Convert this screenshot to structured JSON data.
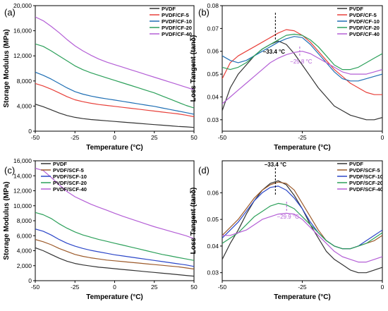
{
  "chart_data": [
    {
      "panel": "(a)",
      "type": "line",
      "xlabel": "Temperature (°C)",
      "ylabel": "Storage Modulus (MPa)",
      "xlim": [
        -50,
        50
      ],
      "ylim": [
        0,
        20000
      ],
      "xticks": [
        -50,
        -25,
        0,
        25,
        50
      ],
      "yticks": [
        0,
        4000,
        8000,
        12000,
        16000,
        20000
      ],
      "ytick_labels": [
        "0",
        "4,000",
        "8,000",
        "12,000",
        "16,000",
        "20,000"
      ],
      "legend_position": "top-right",
      "x": [
        -50,
        -45,
        -40,
        -35,
        -30,
        -25,
        -20,
        -15,
        -10,
        -5,
        0,
        5,
        10,
        15,
        20,
        25,
        30,
        35,
        40,
        45,
        50
      ],
      "series": [
        {
          "name": "PVDF",
          "color": "#333333",
          "values": [
            4300,
            3900,
            3400,
            2900,
            2500,
            2200,
            2000,
            1850,
            1750,
            1650,
            1550,
            1450,
            1350,
            1250,
            1150,
            1050,
            950,
            850,
            750,
            680,
            600
          ]
        },
        {
          "name": "PVDF/CF-5",
          "color": "#e8403a",
          "values": [
            7600,
            7200,
            6700,
            6100,
            5500,
            5000,
            4700,
            4450,
            4250,
            4100,
            3950,
            3800,
            3650,
            3500,
            3350,
            3200,
            3050,
            2900,
            2750,
            2550,
            2300
          ]
        },
        {
          "name": "PVDF/CF-10",
          "color": "#1f6fb4",
          "values": [
            9400,
            8900,
            8300,
            7600,
            6900,
            6300,
            5900,
            5600,
            5350,
            5150,
            4950,
            4750,
            4550,
            4350,
            4150,
            3950,
            3700,
            3450,
            3200,
            2950,
            2700
          ]
        },
        {
          "name": "PVDF/CF-20",
          "color": "#2ca05a",
          "values": [
            13900,
            13500,
            12800,
            12000,
            11200,
            10400,
            9800,
            9300,
            8900,
            8500,
            8100,
            7700,
            7300,
            6900,
            6500,
            6100,
            5600,
            5100,
            4600,
            4100,
            3700
          ]
        },
        {
          "name": "PVDF/CF-40",
          "color": "#b45fd6",
          "values": [
            18200,
            17600,
            16700,
            15700,
            14600,
            13600,
            12800,
            12100,
            11500,
            11000,
            10600,
            10200,
            9800,
            9400,
            9000,
            8600,
            8200,
            7800,
            7400,
            7000,
            6600
          ]
        }
      ]
    },
    {
      "panel": "(b)",
      "type": "line",
      "xlabel": "Temperature (°C)",
      "ylabel": "Loss Tangent (tanδ)",
      "xlim": [
        -50,
        0
      ],
      "ylim": [
        0.025,
        0.08
      ],
      "xticks": [
        -50,
        -25,
        0
      ],
      "yticks": [
        0.03,
        0.04,
        0.05,
        0.06,
        0.07,
        0.08
      ],
      "ytick_labels": [
        "0.03",
        "0.04",
        "0.05",
        "0.06",
        "0.07",
        "0.08"
      ],
      "legend_position": "top-right",
      "x": [
        -50,
        -47.5,
        -45,
        -42.5,
        -40,
        -37.5,
        -35,
        -32.5,
        -30,
        -27.5,
        -25,
        -22.5,
        -20,
        -17.5,
        -15,
        -12.5,
        -10,
        -7.5,
        -5,
        -2.5,
        0
      ],
      "series": [
        {
          "name": "PVDF",
          "color": "#333333",
          "values": [
            0.034,
            0.044,
            0.05,
            0.054,
            0.058,
            0.061,
            0.063,
            0.0645,
            0.063,
            0.059,
            0.054,
            0.049,
            0.044,
            0.04,
            0.036,
            0.034,
            0.032,
            0.031,
            0.03,
            0.03,
            0.031
          ]
        },
        {
          "name": "PVDF/CF-5",
          "color": "#e8403a",
          "values": [
            0.048,
            0.055,
            0.058,
            0.06,
            0.062,
            0.064,
            0.066,
            0.068,
            0.0695,
            0.069,
            0.067,
            0.064,
            0.06,
            0.056,
            0.052,
            0.049,
            0.046,
            0.044,
            0.042,
            0.041,
            0.041
          ]
        },
        {
          "name": "PVDF/CF-10",
          "color": "#1f6fb4",
          "values": [
            0.058,
            0.056,
            0.055,
            0.056,
            0.058,
            0.06,
            0.062,
            0.064,
            0.0655,
            0.0665,
            0.066,
            0.063,
            0.059,
            0.055,
            0.051,
            0.048,
            0.047,
            0.047,
            0.048,
            0.049,
            0.05
          ]
        },
        {
          "name": "PVDF/CF-20",
          "color": "#2ca05a",
          "values": [
            0.053,
            0.052,
            0.053,
            0.055,
            0.058,
            0.061,
            0.063,
            0.065,
            0.067,
            0.0675,
            0.067,
            0.065,
            0.062,
            0.058,
            0.054,
            0.052,
            0.052,
            0.053,
            0.055,
            0.057,
            0.059
          ]
        },
        {
          "name": "PVDF/CF-40",
          "color": "#b45fd6",
          "values": [
            0.037,
            0.04,
            0.043,
            0.046,
            0.049,
            0.052,
            0.055,
            0.057,
            0.0585,
            0.0595,
            0.06,
            0.059,
            0.057,
            0.055,
            0.053,
            0.051,
            0.05,
            0.05,
            0.05,
            0.051,
            0.052
          ]
        }
      ],
      "annotations": [
        {
          "text": "−33.4 °C",
          "x": -33.4,
          "color": "#000000"
        },
        {
          "text": "−25.8 °C",
          "x": -25.8,
          "color": "#b45fd6"
        }
      ]
    },
    {
      "panel": "(c)",
      "type": "line",
      "xlabel": "Temperature (°C)",
      "ylabel": "Storage Modulus (MPa)",
      "xlim": [
        -50,
        50
      ],
      "ylim": [
        0,
        16000
      ],
      "xticks": [
        -50,
        -25,
        0,
        25,
        50
      ],
      "yticks": [
        0,
        2000,
        4000,
        6000,
        8000,
        10000,
        12000,
        14000,
        16000
      ],
      "ytick_labels": [
        "0",
        "2,000",
        "4,000",
        "6,000",
        "8,000",
        "10,000",
        "12,000",
        "14,000",
        "16,000"
      ],
      "legend_position": "top-left",
      "x": [
        -50,
        -45,
        -40,
        -35,
        -30,
        -25,
        -20,
        -15,
        -10,
        -5,
        0,
        5,
        10,
        15,
        20,
        25,
        30,
        35,
        40,
        45,
        50
      ],
      "series": [
        {
          "name": "PVDF",
          "color": "#333333",
          "values": [
            4400,
            4000,
            3500,
            3000,
            2600,
            2300,
            2100,
            1950,
            1800,
            1700,
            1600,
            1500,
            1400,
            1300,
            1200,
            1100,
            1000,
            900,
            800,
            700,
            600
          ]
        },
        {
          "name": "PVDF/SCF-5",
          "color": "#9c5a2a",
          "values": [
            5500,
            5200,
            4800,
            4300,
            3900,
            3500,
            3250,
            3050,
            2900,
            2750,
            2650,
            2550,
            2450,
            2350,
            2250,
            2150,
            2050,
            1950,
            1850,
            1700,
            1550
          ]
        },
        {
          "name": "PVDF/SCF-10",
          "color": "#2b46c8",
          "values": [
            6900,
            6600,
            6100,
            5500,
            5000,
            4600,
            4300,
            4050,
            3850,
            3650,
            3450,
            3300,
            3150,
            3000,
            2850,
            2700,
            2550,
            2400,
            2250,
            2100,
            1900
          ]
        },
        {
          "name": "PVDF/SCF-20",
          "color": "#2ca05a",
          "values": [
            9100,
            8800,
            8300,
            7600,
            7000,
            6500,
            6100,
            5800,
            5500,
            5250,
            5000,
            4750,
            4500,
            4250,
            4000,
            3750,
            3500,
            3300,
            3100,
            2900,
            2700
          ]
        },
        {
          "name": "PVDF/SCF-40",
          "color": "#b45fd6",
          "values": [
            15000,
            14700,
            13800,
            12800,
            11900,
            11200,
            10700,
            10200,
            9800,
            9400,
            9000,
            8600,
            8250,
            7900,
            7550,
            7200,
            6900,
            6600,
            6300,
            6000,
            5600
          ]
        }
      ]
    },
    {
      "panel": "(d)",
      "type": "line",
      "xlabel": "Temperature (°C)",
      "ylabel": "Loss Tangent (tanδ)",
      "xlim": [
        -50,
        0
      ],
      "ylim": [
        0.027,
        0.072
      ],
      "xticks": [
        -50,
        -25,
        0
      ],
      "yticks": [
        0.03,
        0.04,
        0.05,
        0.06
      ],
      "ytick_labels": [
        "0.03",
        "0.04",
        "0.05",
        "0.06"
      ],
      "legend_position": "top-right",
      "x": [
        -50,
        -47.5,
        -45,
        -42.5,
        -40,
        -37.5,
        -35,
        -32.5,
        -30,
        -27.5,
        -25,
        -22.5,
        -20,
        -17.5,
        -15,
        -12.5,
        -10,
        -7.5,
        -5,
        -2.5,
        0
      ],
      "series": [
        {
          "name": "PVDF",
          "color": "#333333",
          "values": [
            0.035,
            0.041,
            0.046,
            0.052,
            0.057,
            0.061,
            0.0635,
            0.0645,
            0.063,
            0.059,
            0.054,
            0.048,
            0.043,
            0.038,
            0.035,
            0.033,
            0.031,
            0.03,
            0.03,
            0.031,
            0.032
          ]
        },
        {
          "name": "PVDF/SCF-5",
          "color": "#9c5a2a",
          "values": [
            0.044,
            0.047,
            0.05,
            0.054,
            0.058,
            0.061,
            0.063,
            0.064,
            0.0635,
            0.061,
            0.056,
            0.051,
            0.046,
            0.042,
            0.04,
            0.039,
            0.039,
            0.04,
            0.041,
            0.042,
            0.044
          ]
        },
        {
          "name": "PVDF/SCF-10",
          "color": "#2b46c8",
          "values": [
            0.043,
            0.046,
            0.049,
            0.053,
            0.057,
            0.06,
            0.062,
            0.0625,
            0.061,
            0.058,
            0.054,
            0.049,
            0.045,
            0.042,
            0.04,
            0.039,
            0.039,
            0.04,
            0.042,
            0.044,
            0.046
          ]
        },
        {
          "name": "PVDF/SCF-20",
          "color": "#2ca05a",
          "values": [
            0.041,
            0.043,
            0.045,
            0.048,
            0.051,
            0.053,
            0.055,
            0.056,
            0.0555,
            0.054,
            0.051,
            0.048,
            0.045,
            0.042,
            0.04,
            0.039,
            0.039,
            0.04,
            0.041,
            0.043,
            0.045
          ]
        },
        {
          "name": "PVDF/SCF-40",
          "color": "#b45fd6",
          "values": [
            0.044,
            0.044,
            0.045,
            0.046,
            0.048,
            0.05,
            0.051,
            0.052,
            0.0523,
            0.052,
            0.05,
            0.047,
            0.044,
            0.041,
            0.038,
            0.036,
            0.035,
            0.034,
            0.034,
            0.035,
            0.036
          ]
        }
      ],
      "annotations": [
        {
          "text": "−33.4 °C",
          "x": -33.4,
          "color": "#000000"
        },
        {
          "text": "−29.9 °C",
          "x": -29.9,
          "color": "#b45fd6"
        }
      ]
    }
  ]
}
